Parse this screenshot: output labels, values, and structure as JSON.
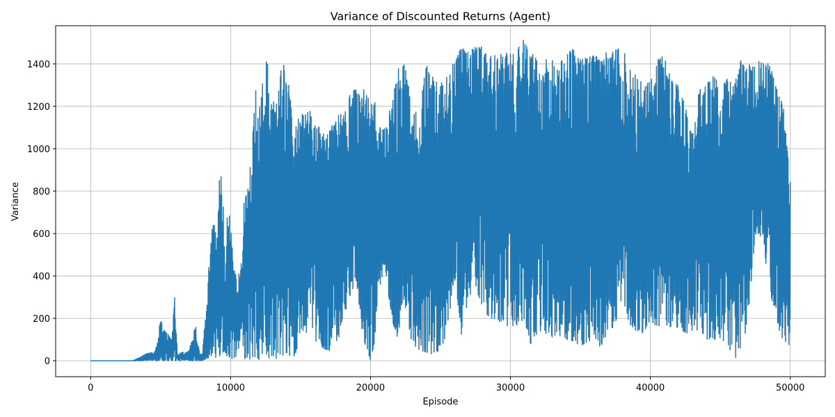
{
  "chart_data": {
    "type": "line",
    "title": "Variance of Discounted Returns (Agent)",
    "xlabel": "Episode",
    "ylabel": "Variance",
    "xlim": [
      -2500,
      52500
    ],
    "ylim": [
      -75,
      1580
    ],
    "xticks": [
      0,
      10000,
      20000,
      30000,
      40000,
      50000
    ],
    "yticks": [
      0,
      200,
      400,
      600,
      800,
      1000,
      1200,
      1400
    ],
    "grid": true,
    "line_color": "#1f77b4",
    "series": [
      {
        "x": [
          0,
          1000,
          2000,
          3000,
          3500,
          4000,
          4500,
          4800,
          5000,
          5200,
          5500,
          5800,
          6000,
          6200,
          6500,
          7000,
          7500,
          7800,
          8000,
          8300,
          8600,
          8800,
          9000,
          9200,
          9400,
          9600,
          9800,
          10000,
          10200,
          10500,
          10800,
          11000,
          11200,
          11500,
          11800,
          12000,
          12200,
          12400,
          12600,
          12800,
          13000,
          13200,
          13500,
          13800,
          14000,
          14200,
          14500,
          14800,
          15000,
          15500,
          16000,
          16500,
          17000,
          17500,
          18000,
          18300,
          18500,
          19000,
          19300,
          19500,
          20000,
          20300,
          20500,
          21000,
          21500,
          22000,
          22300,
          22500,
          23000,
          23500,
          24000,
          24500,
          25000,
          25500,
          26000,
          26500,
          27000,
          27500,
          28000,
          28500,
          29000,
          29500,
          30000,
          30500,
          31000,
          31500,
          32000,
          32500,
          33000,
          33500,
          34000,
          34500,
          35000,
          35500,
          36000,
          36500,
          37000,
          37500,
          38000,
          38500,
          39000,
          39500,
          40000,
          40500,
          41000,
          41500,
          42000,
          42500,
          43000,
          43500,
          44000,
          44500,
          45000,
          45500,
          46000,
          46500,
          47000,
          47500,
          48000,
          48500,
          49000,
          49500,
          50000
        ],
        "min": [
          0,
          0,
          0,
          0,
          0,
          0,
          0,
          0,
          0,
          0,
          0,
          0,
          0,
          0,
          0,
          0,
          0,
          0,
          0,
          10,
          20,
          30,
          10,
          20,
          40,
          30,
          20,
          10,
          10,
          20,
          100,
          10,
          5,
          5,
          10,
          5,
          10,
          20,
          15,
          10,
          20,
          10,
          15,
          20,
          5,
          10,
          20,
          30,
          150,
          130,
          100,
          60,
          50,
          30,
          200,
          250,
          300,
          380,
          180,
          100,
          0,
          90,
          300,
          450,
          200,
          95,
          300,
          200,
          80,
          50,
          40,
          30,
          50,
          140,
          380,
          120,
          300,
          350,
          250,
          200,
          190,
          170,
          160,
          170,
          190,
          60,
          140,
          130,
          110,
          120,
          100,
          90,
          70,
          90,
          80,
          60,
          150,
          140,
          260,
          170,
          140,
          130,
          180,
          160,
          170,
          150,
          160,
          130,
          130,
          150,
          100,
          100,
          100,
          80,
          10,
          40,
          200,
          600,
          550,
          300,
          200,
          60,
          80
        ],
        "max": [
          0,
          0,
          0,
          0,
          15,
          35,
          40,
          100,
          210,
          150,
          130,
          100,
          300,
          30,
          40,
          45,
          170,
          30,
          40,
          315,
          600,
          670,
          590,
          850,
          880,
          500,
          750,
          670,
          440,
          380,
          470,
          890,
          780,
          1000,
          1280,
          1150,
          1350,
          1250,
          1460,
          1200,
          1220,
          1230,
          1400,
          1400,
          1300,
          1320,
          1000,
          1180,
          1150,
          1200,
          1140,
          1080,
          1080,
          1140,
          1180,
          1250,
          1250,
          1290,
          1230,
          1280,
          1220,
          1230,
          1100,
          1100,
          1210,
          1380,
          1390,
          1410,
          1150,
          1200,
          1400,
          1330,
          1330,
          1360,
          1410,
          1480,
          1460,
          1480,
          1480,
          1450,
          1440,
          1450,
          1460,
          1470,
          1520,
          1460,
          1420,
          1420,
          1420,
          1400,
          1440,
          1480,
          1420,
          1430,
          1440,
          1430,
          1470,
          1470,
          1480,
          1380,
          1350,
          1300,
          1330,
          1420,
          1440,
          1320,
          1300,
          1200,
          1060,
          1280,
          1300,
          1350,
          1290,
          1330,
          1300,
          1420,
          1400,
          1430,
          1400,
          1410,
          1290,
          1200,
          850
        ]
      }
    ]
  }
}
